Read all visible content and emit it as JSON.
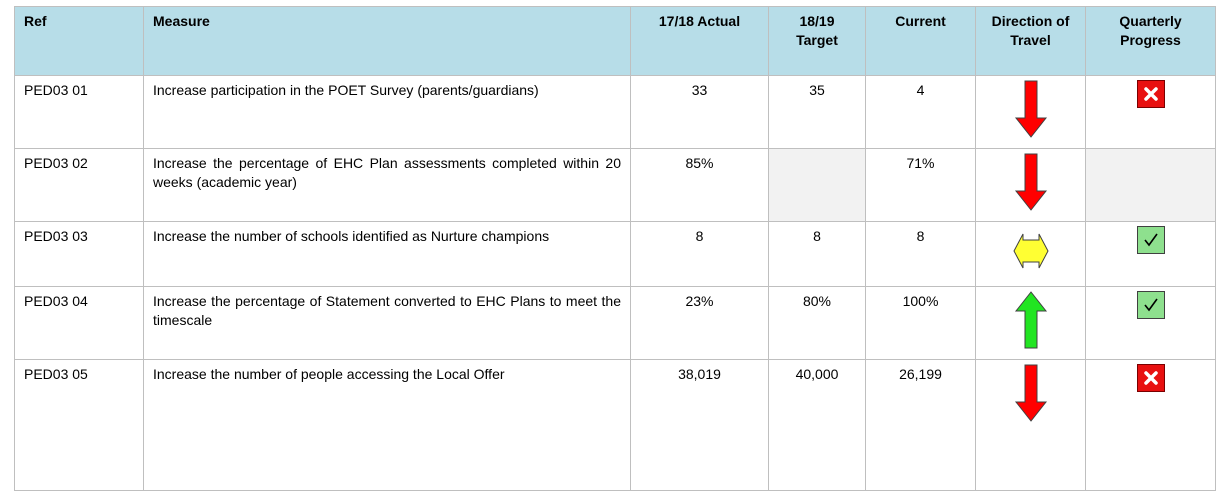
{
  "table": {
    "header": [
      "Ref",
      "Measure",
      "17/18 Actual",
      "18/19 Target",
      "Current",
      "Direction of Travel",
      "Quarterly Progress"
    ],
    "rows": [
      {
        "ref": "PED03 01",
        "measure": "Increase participation in the POET Survey (parents/guardians)",
        "actual": "33",
        "target": "35",
        "current": "4"
      },
      {
        "ref": "PED03 02",
        "measure": "Increase the percentage of EHC Plan assessments completed within 20 weeks (academic year)",
        "actual": "85%",
        "current": "71%"
      },
      {
        "ref": "PED03 03",
        "measure": "Increase the number of schools identified as Nurture champions",
        "actual": "8",
        "target": "8",
        "current": "8"
      },
      {
        "ref": "PED03 04",
        "measure": "Increase the percentage of Statement converted to EHC Plans to meet the timescale",
        "actual": "23%",
        "target": "80%",
        "current": "100%"
      },
      {
        "ref": "PED03 05",
        "measure": "Increase the number of people accessing the Local Offer",
        "actual": "38,019",
        "target": "40,000",
        "current": "26,199"
      }
    ]
  }
}
